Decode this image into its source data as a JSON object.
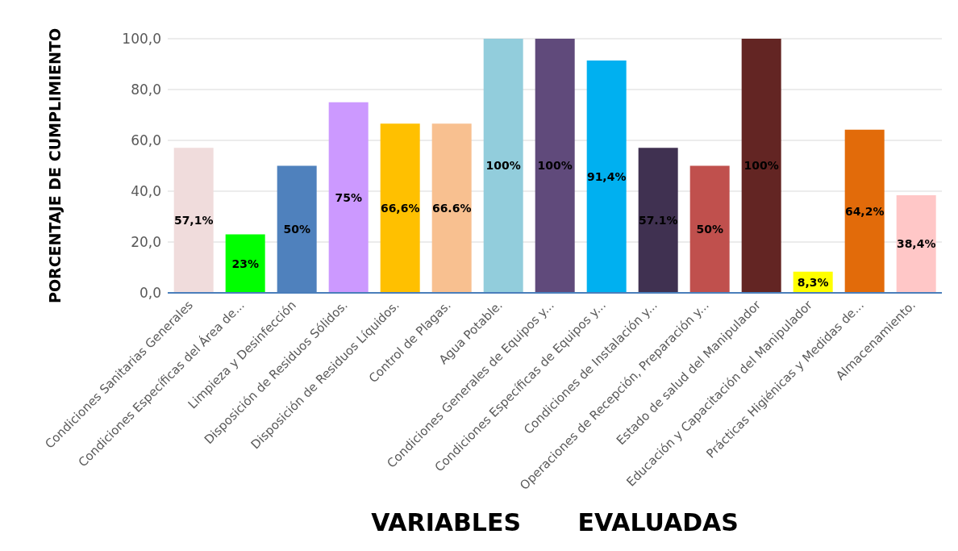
{
  "chart_data": {
    "type": "bar",
    "ylabel": "PORCENTAJE  DE CUMPLIMIENTO",
    "xlabel": "VARIABLES EVALUADAS",
    "categories": [
      "Condiciones Sanitarias Generales",
      "Condiciones Específicas del Área de...",
      "Limpieza y Desinfección",
      "Disposición de Residuos Sólidos.",
      "Disposición de Residuos Líquidos.",
      "Control de Plagas.",
      "Agua Potable.",
      "Condiciones Generales de Equipos y...",
      "Condiciones Específicas de Equipos y...",
      "Condiciones de Instalación y...",
      "Operaciones de Recepción, Preparación y...",
      "Estado de salud del Manipulador",
      "Educación y Capacitación del Manipulador",
      "Prácticas Higiénicas y Medidas de...",
      "Almacenamiento."
    ],
    "values": [
      57.1,
      23,
      50,
      75,
      66.6,
      66.6,
      100,
      100,
      91.4,
      57.1,
      50,
      100,
      8.3,
      64.2,
      38.4
    ],
    "colors": [
      "#f0dcdc",
      "#00ff00",
      "#4f81bd",
      "#cc99ff",
      "#ffc000",
      "#f8c090",
      "#92cddc",
      "#604a7b",
      "#00b0f0",
      "#403151",
      "#c0504d",
      "#632523",
      "#ffff00",
      "#e26b0a",
      "#ffc7c7"
    ],
    "value_labels": [
      "57,1%",
      "23%",
      "50%",
      "75%",
      "66,6%",
      "66.6%",
      "100%",
      "100%",
      "91,4%",
      "57.1%",
      "50%",
      "100%",
      "8,3%",
      "64,2%",
      "38,4%"
    ],
    "ylim": [
      0,
      100
    ],
    "yticks": [
      {
        "value": 0,
        "label": "0,0"
      },
      {
        "value": 20,
        "label": "20,0"
      },
      {
        "value": 40,
        "label": "40,0"
      },
      {
        "value": 60,
        "label": "60,0"
      },
      {
        "value": 80,
        "label": "80,0"
      },
      {
        "value": 100,
        "label": "100,0"
      }
    ],
    "grid": "y"
  }
}
